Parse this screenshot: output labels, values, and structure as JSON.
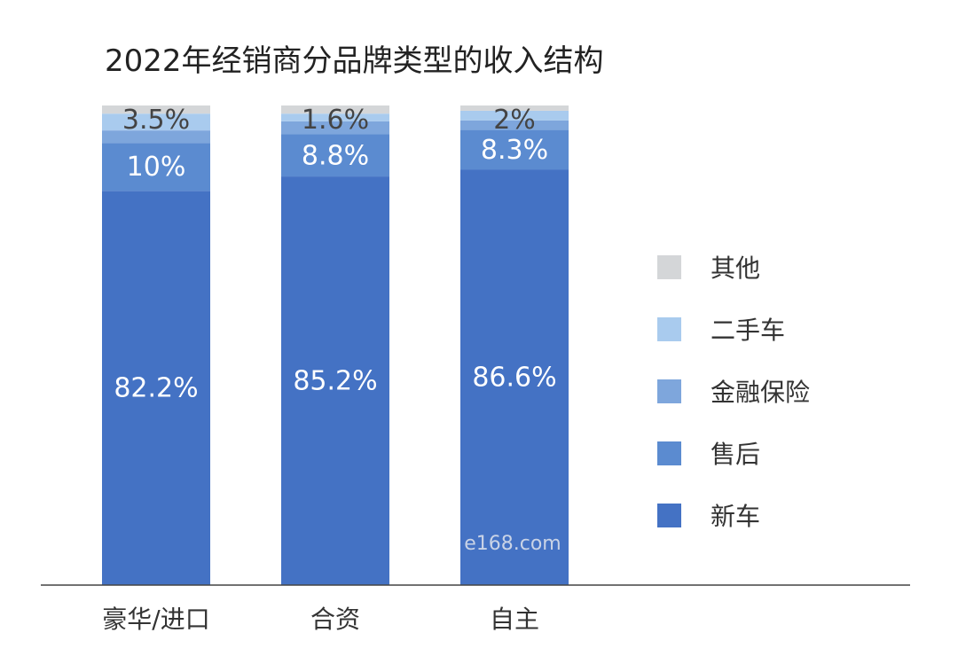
{
  "chart_data": {
    "type": "bar",
    "stacked": true,
    "percent": true,
    "title": "2022年经销商分品牌类型的收入结构",
    "categories": [
      "豪华/进口",
      "合资",
      "自主"
    ],
    "ylim": [
      0,
      100
    ],
    "grid": false,
    "legend_position": "right",
    "series": [
      {
        "name": "新车",
        "color": "#4472c4",
        "values": [
          82.2,
          85.2,
          86.6
        ],
        "labels": [
          "82.2%",
          "85.2%",
          "86.6%"
        ]
      },
      {
        "name": "售后",
        "color": "#5b8bd0",
        "values": [
          10,
          8.8,
          8.3
        ],
        "labels": [
          "10%",
          "8.8%",
          "8.3%"
        ]
      },
      {
        "name": "金融保险",
        "color": "#7ea6dc",
        "values": [
          2.6,
          2.7,
          2.0
        ],
        "labels": [
          "",
          "",
          ""
        ]
      },
      {
        "name": "二手车",
        "color": "#a9cbee",
        "values": [
          3.5,
          1.6,
          2.0
        ],
        "labels": [
          "3.5%",
          "1.6%",
          "2%"
        ]
      },
      {
        "name": "其他",
        "color": "#d4d6d8",
        "values": [
          1.7,
          1.7,
          1.1
        ],
        "labels": [
          "",
          "",
          ""
        ]
      }
    ],
    "watermark": "e168.com"
  }
}
